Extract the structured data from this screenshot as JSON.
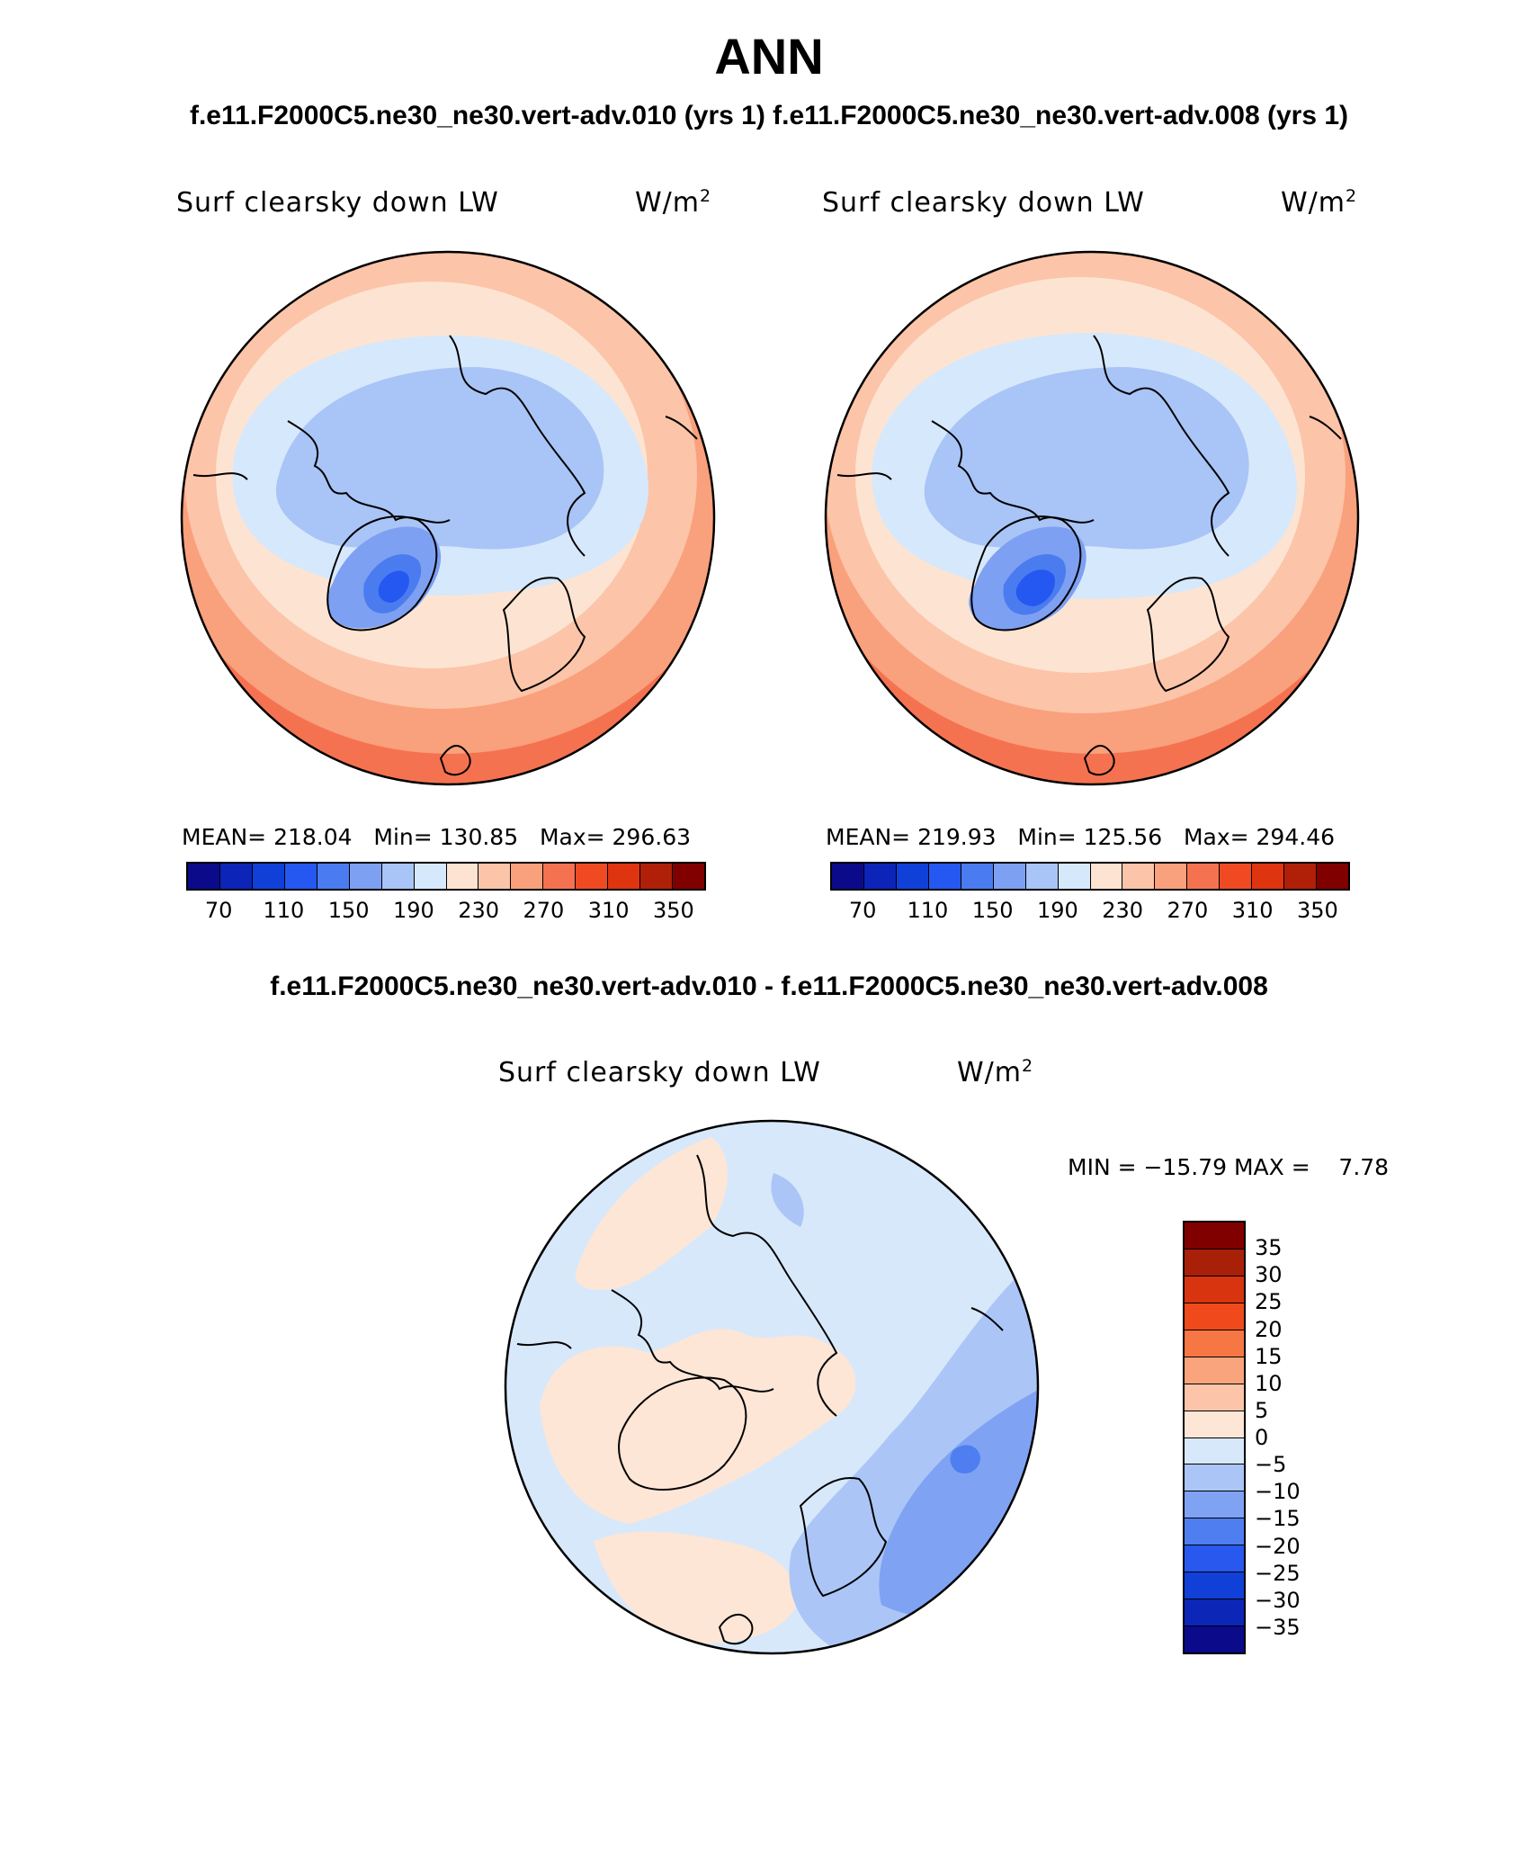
{
  "title": "ANN",
  "top_subtitle": "f.e11.F2000C5.ne30_ne30.vert-adv.010 (yrs 1) f.e11.F2000C5.ne30_ne30.vert-adv.008 (yrs 1)",
  "diff_subtitle": "f.e11.F2000C5.ne30_ne30.vert-adv.010 - f.e11.F2000C5.ne30_ne30.vert-adv.008",
  "panels": [
    {
      "variable": "Surf clearsky down LW",
      "units_base": "W/m",
      "units_exp": "2",
      "stats": "MEAN= 218.04   Min= 130.85   Max= 296.63"
    },
    {
      "variable": "Surf clearsky down LW",
      "units_base": "W/m",
      "units_exp": "2",
      "stats": "MEAN= 219.93   Min= 125.56   Max= 294.46"
    }
  ],
  "diff_panel": {
    "variable": "Surf clearsky down LW",
    "units_base": "W/m",
    "units_exp": "2",
    "minmax": "MIN = −15.79 MAX =    7.78"
  },
  "colorbar_main": {
    "colors": [
      "#0a0a8a",
      "#0c24b8",
      "#1040d8",
      "#2458f0",
      "#4a7cf0",
      "#7ea0f2",
      "#a9c4f6",
      "#d6e8fb",
      "#fde4d2",
      "#fcc4a8",
      "#f9a07c",
      "#f57250",
      "#f04a22",
      "#de3410",
      "#b02008",
      "#800000"
    ],
    "labels": [
      "70",
      "110",
      "150",
      "190",
      "230",
      "270",
      "310",
      "350"
    ]
  },
  "colorbar_diff": {
    "colors": [
      "#800000",
      "#a82008",
      "#d83410",
      "#f04a1c",
      "#f67644",
      "#f9a47c",
      "#fcc4a8",
      "#fde6d6",
      "#d8e8fb",
      "#abc6f6",
      "#80a2f2",
      "#4e7ef0",
      "#2858ee",
      "#1040d8",
      "#0c26b8",
      "#0a0a8a"
    ],
    "labels": [
      "35",
      "30",
      "25",
      "20",
      "15",
      "10",
      "5",
      "0",
      "−5",
      "−10",
      "−15",
      "−20",
      "−25",
      "−30",
      "−35"
    ]
  },
  "map_colors": {
    "ring5": "#f57250",
    "ring4": "#f9a07c",
    "ring3": "#fcc4a8",
    "ring2": "#fde4d2",
    "ring1": "#d6e8fb",
    "ice": "#a9c4f6",
    "greenland1": "#7ea0f2",
    "greenland2": "#4a7cf0",
    "greenland3": "#2458f0",
    "diff_neutral": "#d8e8fb",
    "diff_pos": "#fde6d6",
    "diff_neg1": "#abc6f6",
    "diff_neg2": "#80a2f2",
    "diff_neg3": "#4e7ef0"
  }
}
